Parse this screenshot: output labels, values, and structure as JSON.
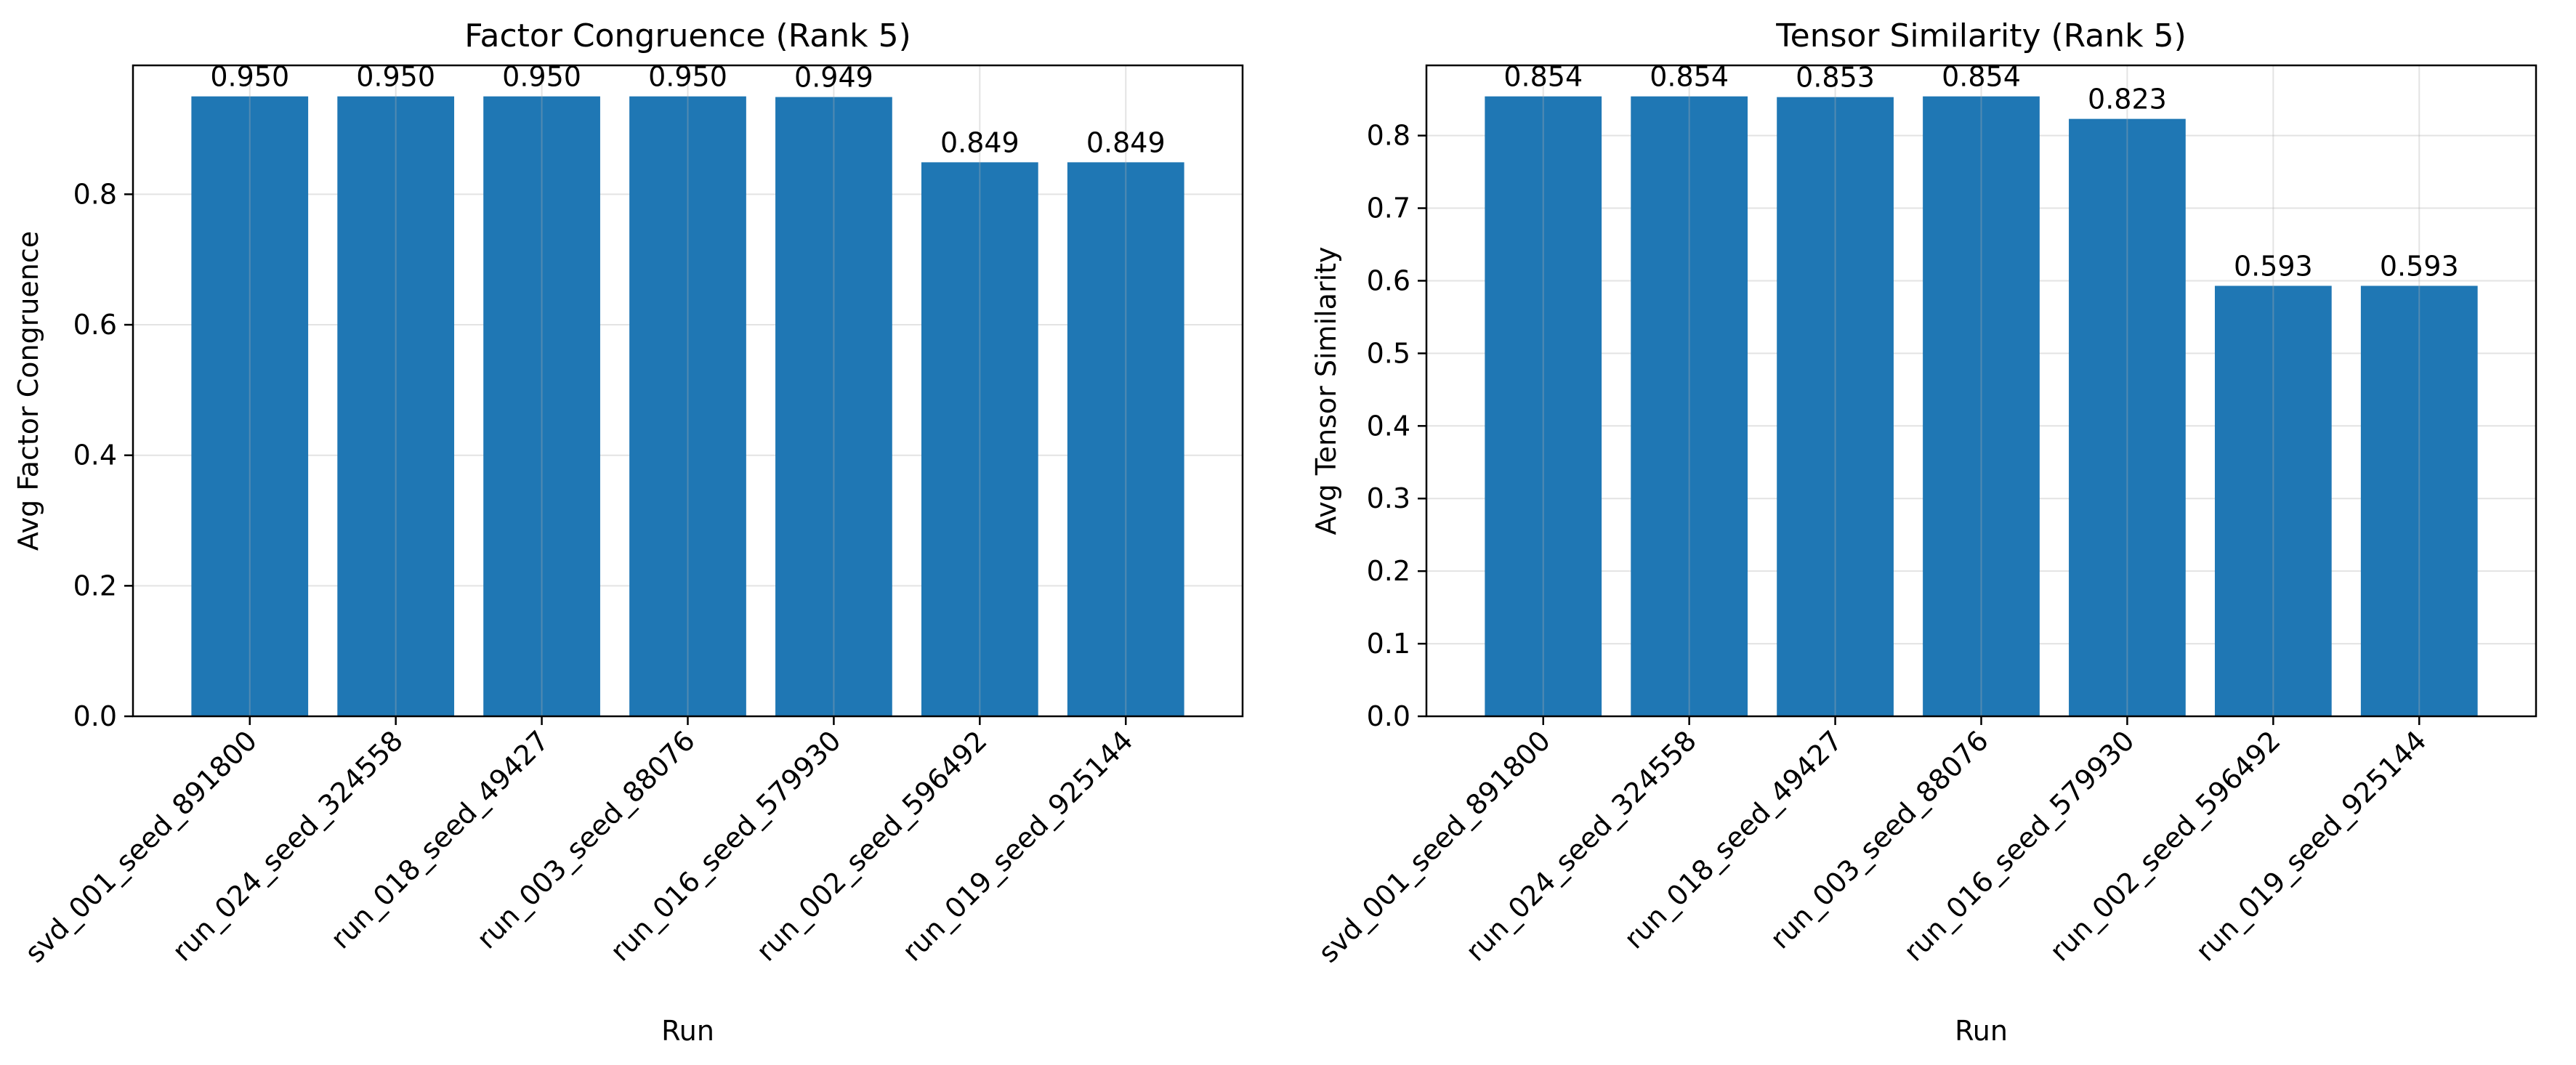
{
  "colors": {
    "bar": "#1f77b4",
    "grid": "#b0b0b0",
    "axis": "#000000"
  },
  "chart_data": [
    {
      "type": "bar",
      "title": "Factor Congruence (Rank 5)",
      "xlabel": "Run",
      "ylabel": "Avg Factor Congruence",
      "categories": [
        "svd_001_seed_891800",
        "run_024_seed_324558",
        "run_018_seed_49427",
        "run_003_seed_88076",
        "run_016_seed_579930",
        "run_002_seed_596492",
        "run_019_seed_925144"
      ],
      "values": [
        0.95,
        0.95,
        0.95,
        0.95,
        0.949,
        0.849,
        0.849
      ],
      "value_labels": [
        "0.950",
        "0.950",
        "0.950",
        "0.950",
        "0.949",
        "0.849",
        "0.849"
      ],
      "ylim": [
        0,
        0.9975
      ],
      "yticks": [
        0.0,
        0.2,
        0.4,
        0.6,
        0.8
      ],
      "ytick_labels": [
        "0.0",
        "0.2",
        "0.4",
        "0.6",
        "0.8"
      ],
      "grid": true
    },
    {
      "type": "bar",
      "title": "Tensor Similarity (Rank 5)",
      "xlabel": "Run",
      "ylabel": "Avg Tensor Similarity",
      "categories": [
        "svd_001_seed_891800",
        "run_024_seed_324558",
        "run_018_seed_49427",
        "run_003_seed_88076",
        "run_016_seed_579930",
        "run_002_seed_596492",
        "run_019_seed_925144"
      ],
      "values": [
        0.854,
        0.854,
        0.853,
        0.854,
        0.823,
        0.593,
        0.593
      ],
      "value_labels": [
        "0.854",
        "0.854",
        "0.853",
        "0.854",
        "0.823",
        "0.593",
        "0.593"
      ],
      "ylim": [
        0,
        0.8967
      ],
      "yticks": [
        0.0,
        0.1,
        0.2,
        0.3,
        0.4,
        0.5,
        0.6,
        0.7,
        0.8
      ],
      "ytick_labels": [
        "0.0",
        "0.1",
        "0.2",
        "0.3",
        "0.4",
        "0.5",
        "0.6",
        "0.7",
        "0.8"
      ],
      "grid": true
    }
  ]
}
